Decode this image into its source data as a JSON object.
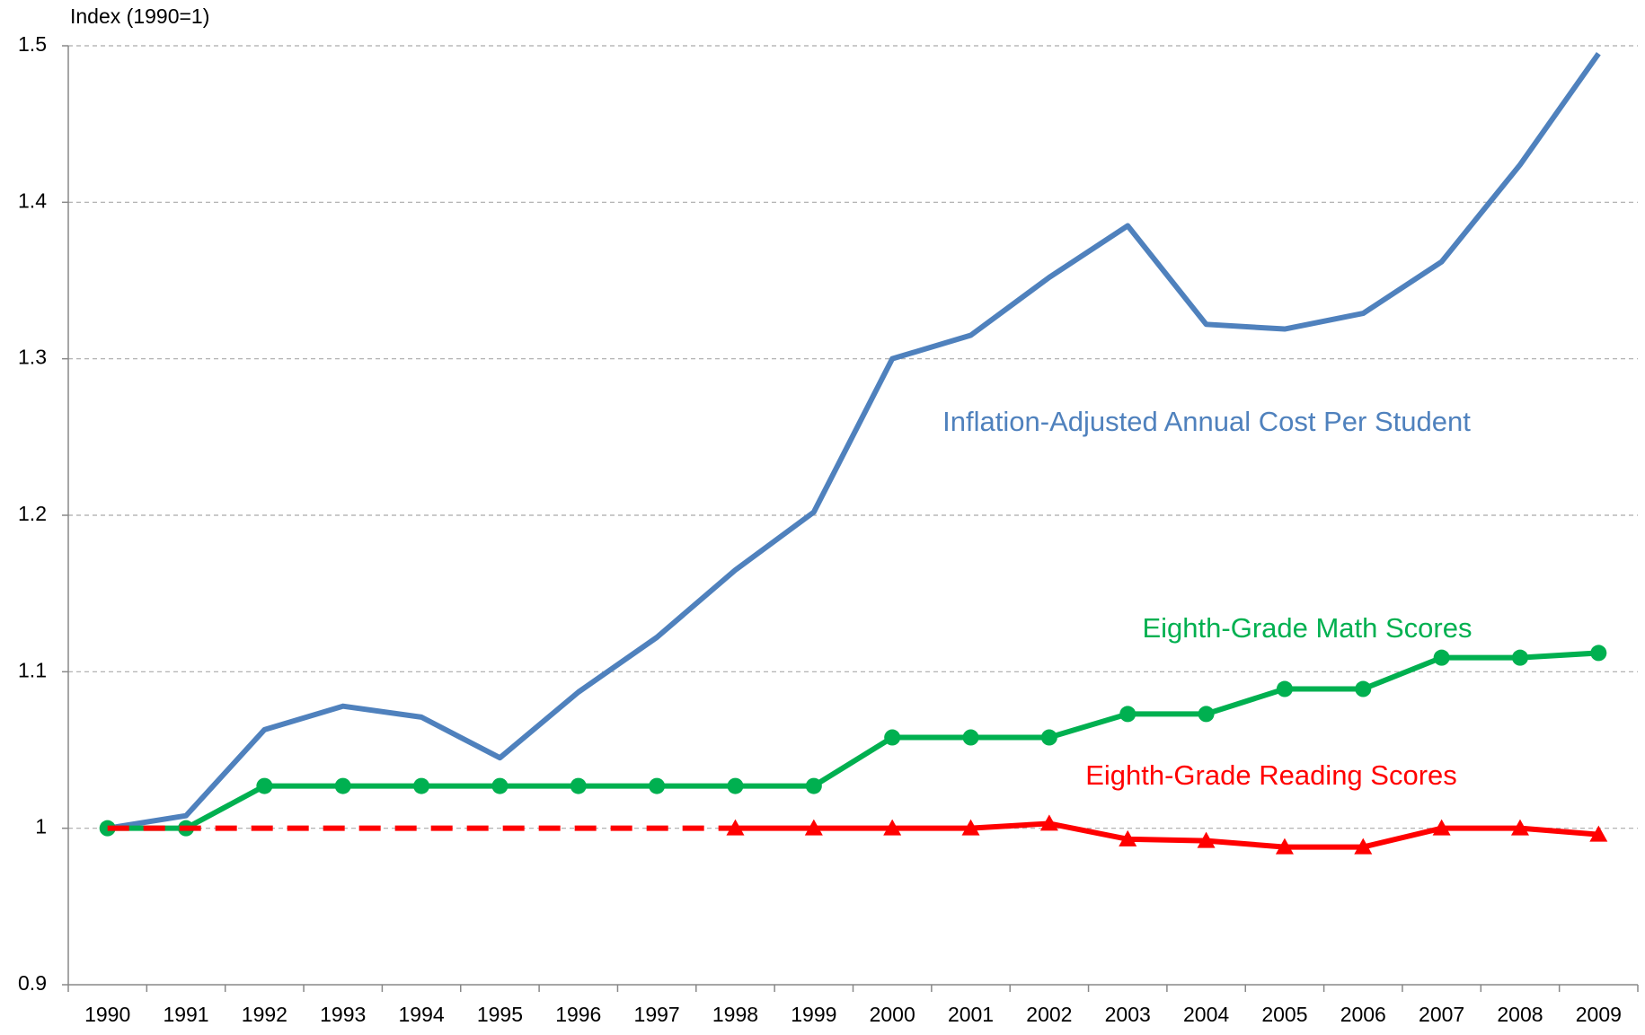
{
  "chart_data": {
    "type": "line",
    "y_axis_label": "Index (1990=1)",
    "categories": [
      "1990",
      "1991",
      "1992",
      "1993",
      "1994",
      "1995",
      "1996",
      "1997",
      "1998",
      "1999",
      "2000",
      "2001",
      "2002",
      "2003",
      "2004",
      "2005",
      "2006",
      "2007",
      "2008",
      "2009"
    ],
    "series": [
      {
        "name": "Inflation-Adjusted Annual Cost Per Student",
        "color": "#4f81bd",
        "marker": "none",
        "values": [
          1.0,
          1.008,
          1.063,
          1.078,
          1.071,
          1.045,
          1.087,
          1.122,
          1.165,
          1.202,
          1.3,
          1.315,
          1.352,
          1.385,
          1.322,
          1.319,
          1.329,
          1.362,
          1.424,
          1.495
        ]
      },
      {
        "name": "Eighth-Grade Math Scores",
        "color": "#00b050",
        "marker": "circle",
        "values": [
          1.0,
          1.0,
          1.027,
          1.027,
          1.027,
          1.027,
          1.027,
          1.027,
          1.027,
          1.027,
          1.058,
          1.058,
          1.058,
          1.073,
          1.073,
          1.089,
          1.089,
          1.109,
          1.109,
          1.112
        ]
      },
      {
        "name": "Eighth-Grade Reading Scores",
        "color": "#ff0000",
        "marker": "triangle",
        "dashed_through": "1998",
        "values": [
          1.0,
          1.0,
          1.0,
          1.0,
          1.0,
          1.0,
          1.0,
          1.0,
          1.0,
          1.0,
          1.0,
          1.0,
          1.003,
          0.993,
          0.992,
          0.988,
          0.988,
          1.0,
          1.0,
          0.996
        ]
      }
    ],
    "ylim": [
      0.9,
      1.5
    ],
    "yticks": [
      0.9,
      1,
      1.1,
      1.2,
      1.3,
      1.4,
      1.5
    ],
    "grid": true
  }
}
